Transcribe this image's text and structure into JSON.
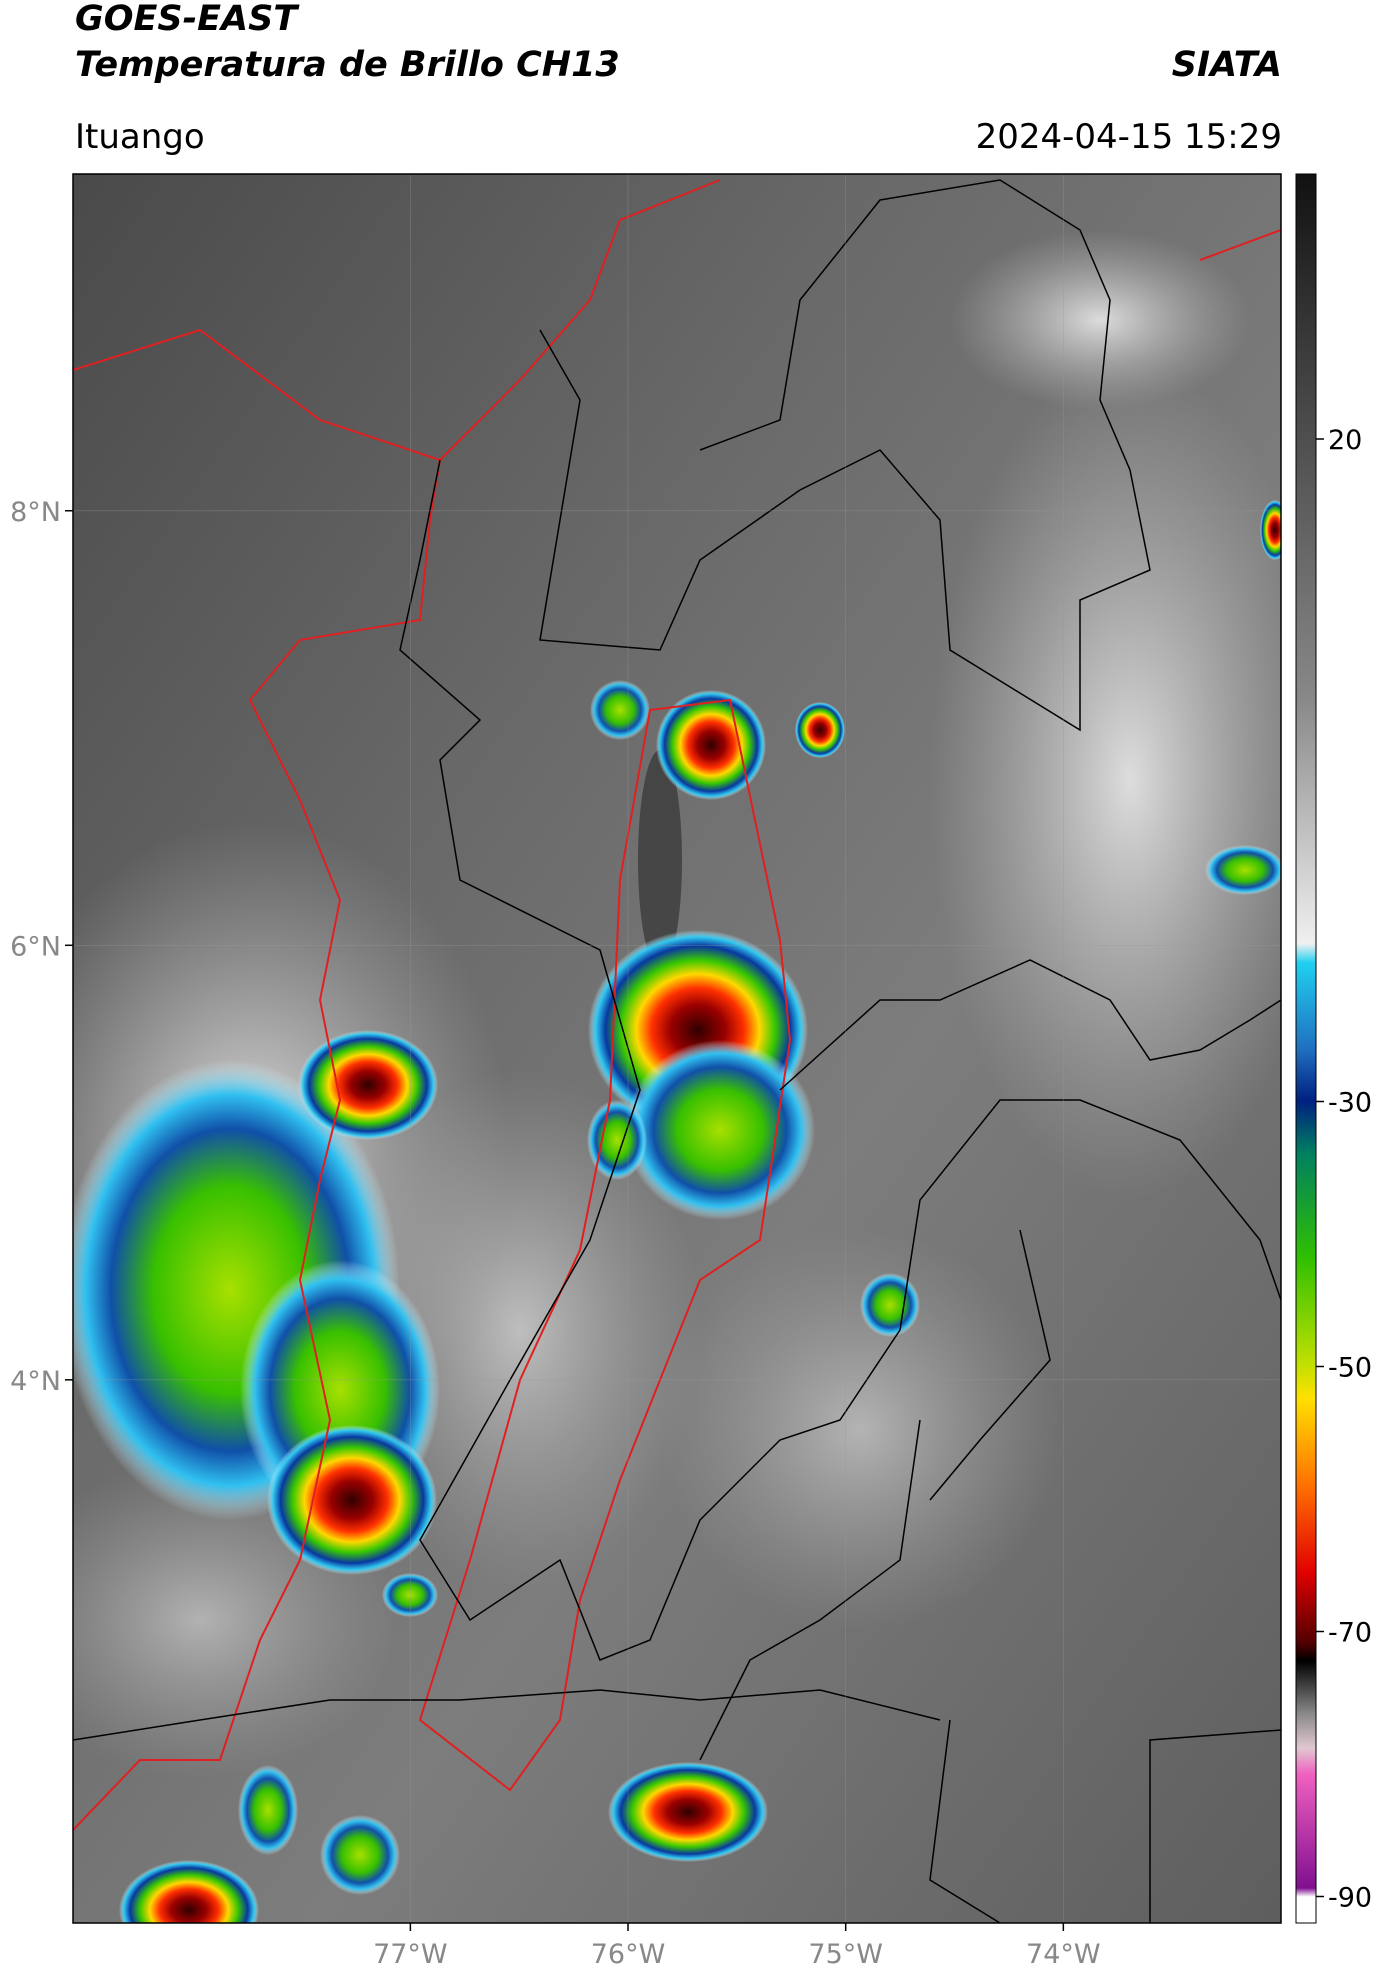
{
  "header": {
    "title": "GOES-EAST",
    "subtitle": "Temperatura de Brillo CH13",
    "source": "SIATA",
    "location": "Ituango",
    "datetime": "2024-04-15 15:29"
  },
  "map": {
    "lon_extent": [
      -78.55,
      -73.0
    ],
    "lat_extent": [
      1.5,
      9.55
    ],
    "lat_ticks": [
      {
        "value": 8,
        "label": "8°N"
      },
      {
        "value": 6,
        "label": "6°N"
      },
      {
        "value": 4,
        "label": "4°N"
      }
    ],
    "lon_ticks": [
      {
        "value": -77,
        "label": "77°W"
      },
      {
        "value": -76,
        "label": "76°W"
      },
      {
        "value": -75,
        "label": "75°W"
      },
      {
        "value": -74,
        "label": "74°W"
      }
    ]
  },
  "colorbar": {
    "limits": [
      -92,
      40
    ],
    "ticks": [
      20,
      -30,
      -50,
      -70,
      -90
    ]
  }
}
